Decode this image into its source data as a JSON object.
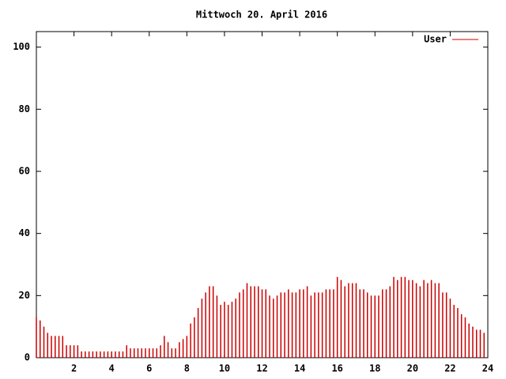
{
  "chart_data": {
    "type": "impulse",
    "title": "Mittwoch 20. April 2016",
    "x": [
      0,
      0.2,
      0.4,
      0.6,
      0.8,
      1,
      1.2,
      1.4,
      1.6,
      1.8,
      2,
      2.2,
      2.4,
      2.6,
      2.8,
      3,
      3.2,
      3.4,
      3.6,
      3.8,
      4,
      4.2,
      4.4,
      4.6,
      4.8,
      5,
      5.2,
      5.4,
      5.6,
      5.8,
      6,
      6.2,
      6.4,
      6.6,
      6.8,
      7,
      7.2,
      7.4,
      7.6,
      7.8,
      8,
      8.2,
      8.4,
      8.6,
      8.8,
      9,
      9.2,
      9.4,
      9.6,
      9.8,
      10,
      10.2,
      10.4,
      10.6,
      10.8,
      11,
      11.2,
      11.4,
      11.6,
      11.8,
      12,
      12.2,
      12.4,
      12.6,
      12.8,
      13,
      13.2,
      13.4,
      13.6,
      13.8,
      14,
      14.2,
      14.4,
      14.6,
      14.8,
      15,
      15.2,
      15.4,
      15.6,
      15.8,
      16,
      16.2,
      16.4,
      16.6,
      16.8,
      17,
      17.2,
      17.4,
      17.6,
      17.8,
      18,
      18.2,
      18.4,
      18.6,
      18.8,
      19,
      19.2,
      19.4,
      19.6,
      19.8,
      20,
      20.2,
      20.4,
      20.6,
      20.8,
      21,
      21.2,
      21.4,
      21.6,
      21.8,
      22,
      22.2,
      22.4,
      22.6,
      22.8,
      23,
      23.2,
      23.4,
      23.6,
      23.8
    ],
    "series": [
      {
        "name": "User",
        "color": "#cc0000",
        "values": [
          13,
          12,
          10,
          8,
          7,
          7,
          7,
          7,
          4,
          4,
          4,
          4,
          2,
          2,
          2,
          2,
          2,
          2,
          2,
          2,
          2,
          2,
          2,
          2,
          4,
          3,
          3,
          3,
          3,
          3,
          3,
          3,
          3,
          4,
          7,
          5,
          3,
          3,
          5,
          6,
          7,
          11,
          13,
          16,
          19,
          21,
          23,
          23,
          20,
          17,
          18,
          17,
          18,
          19,
          21,
          22,
          24,
          23,
          23,
          23,
          22,
          22,
          20,
          19,
          20,
          21,
          21,
          22,
          21,
          21,
          22,
          22,
          23,
          20,
          21,
          21,
          21,
          22,
          22,
          22,
          26,
          25,
          23,
          24,
          24,
          24,
          22,
          22,
          21,
          20,
          20,
          20,
          22,
          22,
          23,
          26,
          25,
          26,
          26,
          25,
          25,
          24,
          23,
          25,
          24,
          25,
          24,
          24,
          21,
          21,
          19,
          17,
          16,
          14,
          13,
          11,
          10,
          9,
          9,
          8
        ]
      }
    ],
    "xlim": [
      0,
      24
    ],
    "xticks": [
      2,
      4,
      6,
      8,
      10,
      12,
      14,
      16,
      18,
      20,
      22,
      24
    ],
    "ylim": [
      0,
      105
    ],
    "yticks": [
      0,
      20,
      40,
      60,
      80,
      100
    ],
    "legend": "top-right"
  }
}
